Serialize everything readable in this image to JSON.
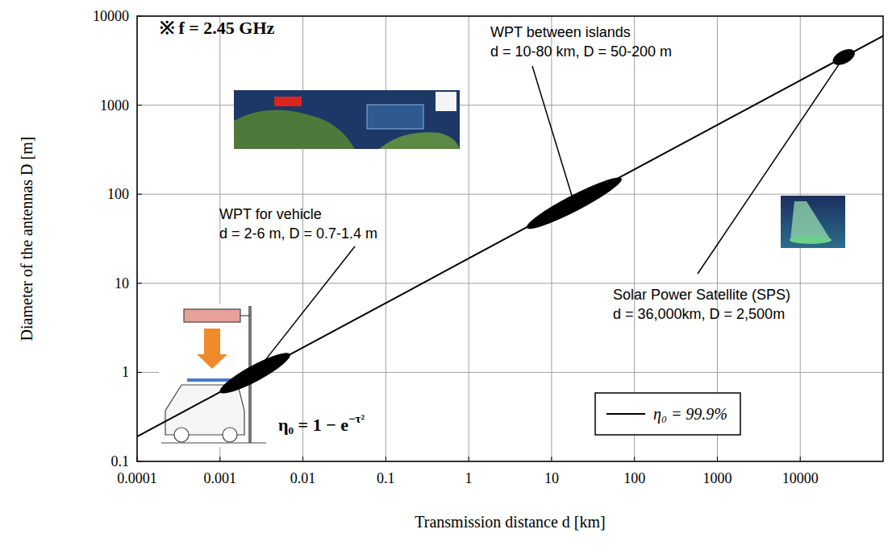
{
  "chart_data": {
    "type": "line",
    "title": "※ f = 2.45 GHz",
    "x_label": "Transmission distance d [km]",
    "y_label": "Diameter of the antennas D [m]",
    "log": true,
    "grid": true,
    "legend": "bottom-right",
    "xlim": [
      0.0001,
      100000
    ],
    "ylim": [
      0.1,
      10000
    ],
    "xticks": [
      0.0001,
      0.001,
      0.01,
      0.1,
      1,
      10,
      100,
      1000,
      10000
    ],
    "yticks": [
      0.1,
      1,
      10,
      100,
      1000,
      10000
    ],
    "x": [
      0.0001,
      0.001,
      0.01,
      0.1,
      1,
      10,
      100,
      1000,
      10000,
      100000
    ],
    "series": [
      {
        "name": "η₀ = 99.9%",
        "color": "#000000",
        "line_style": "solid",
        "values": [
          0.19,
          0.6,
          1.9,
          6,
          19,
          60,
          190,
          600,
          1900,
          6000
        ]
      }
    ],
    "formula": {
      "base": "η₀ = 1 − e",
      "exponent": "−τ²"
    },
    "annotations": [
      {
        "label": "WPT for vehicle",
        "detail": "d = 2-6 m, D = 0.7-1.4 m",
        "x": [
          0.001,
          0.007
        ],
        "y": [
          0.6,
          1.6
        ]
      },
      {
        "label": "WPT between islands",
        "detail": "d = 10-80 km, D = 50-200 m",
        "x": [
          5,
          70
        ],
        "y": [
          42,
          150
        ]
      },
      {
        "label": "Solar Power Satellite (SPS)",
        "detail": "d = 36,000km, D = 2,500m",
        "x": [
          25000,
          45000
        ],
        "y": [
          3000,
          4000
        ]
      }
    ]
  }
}
